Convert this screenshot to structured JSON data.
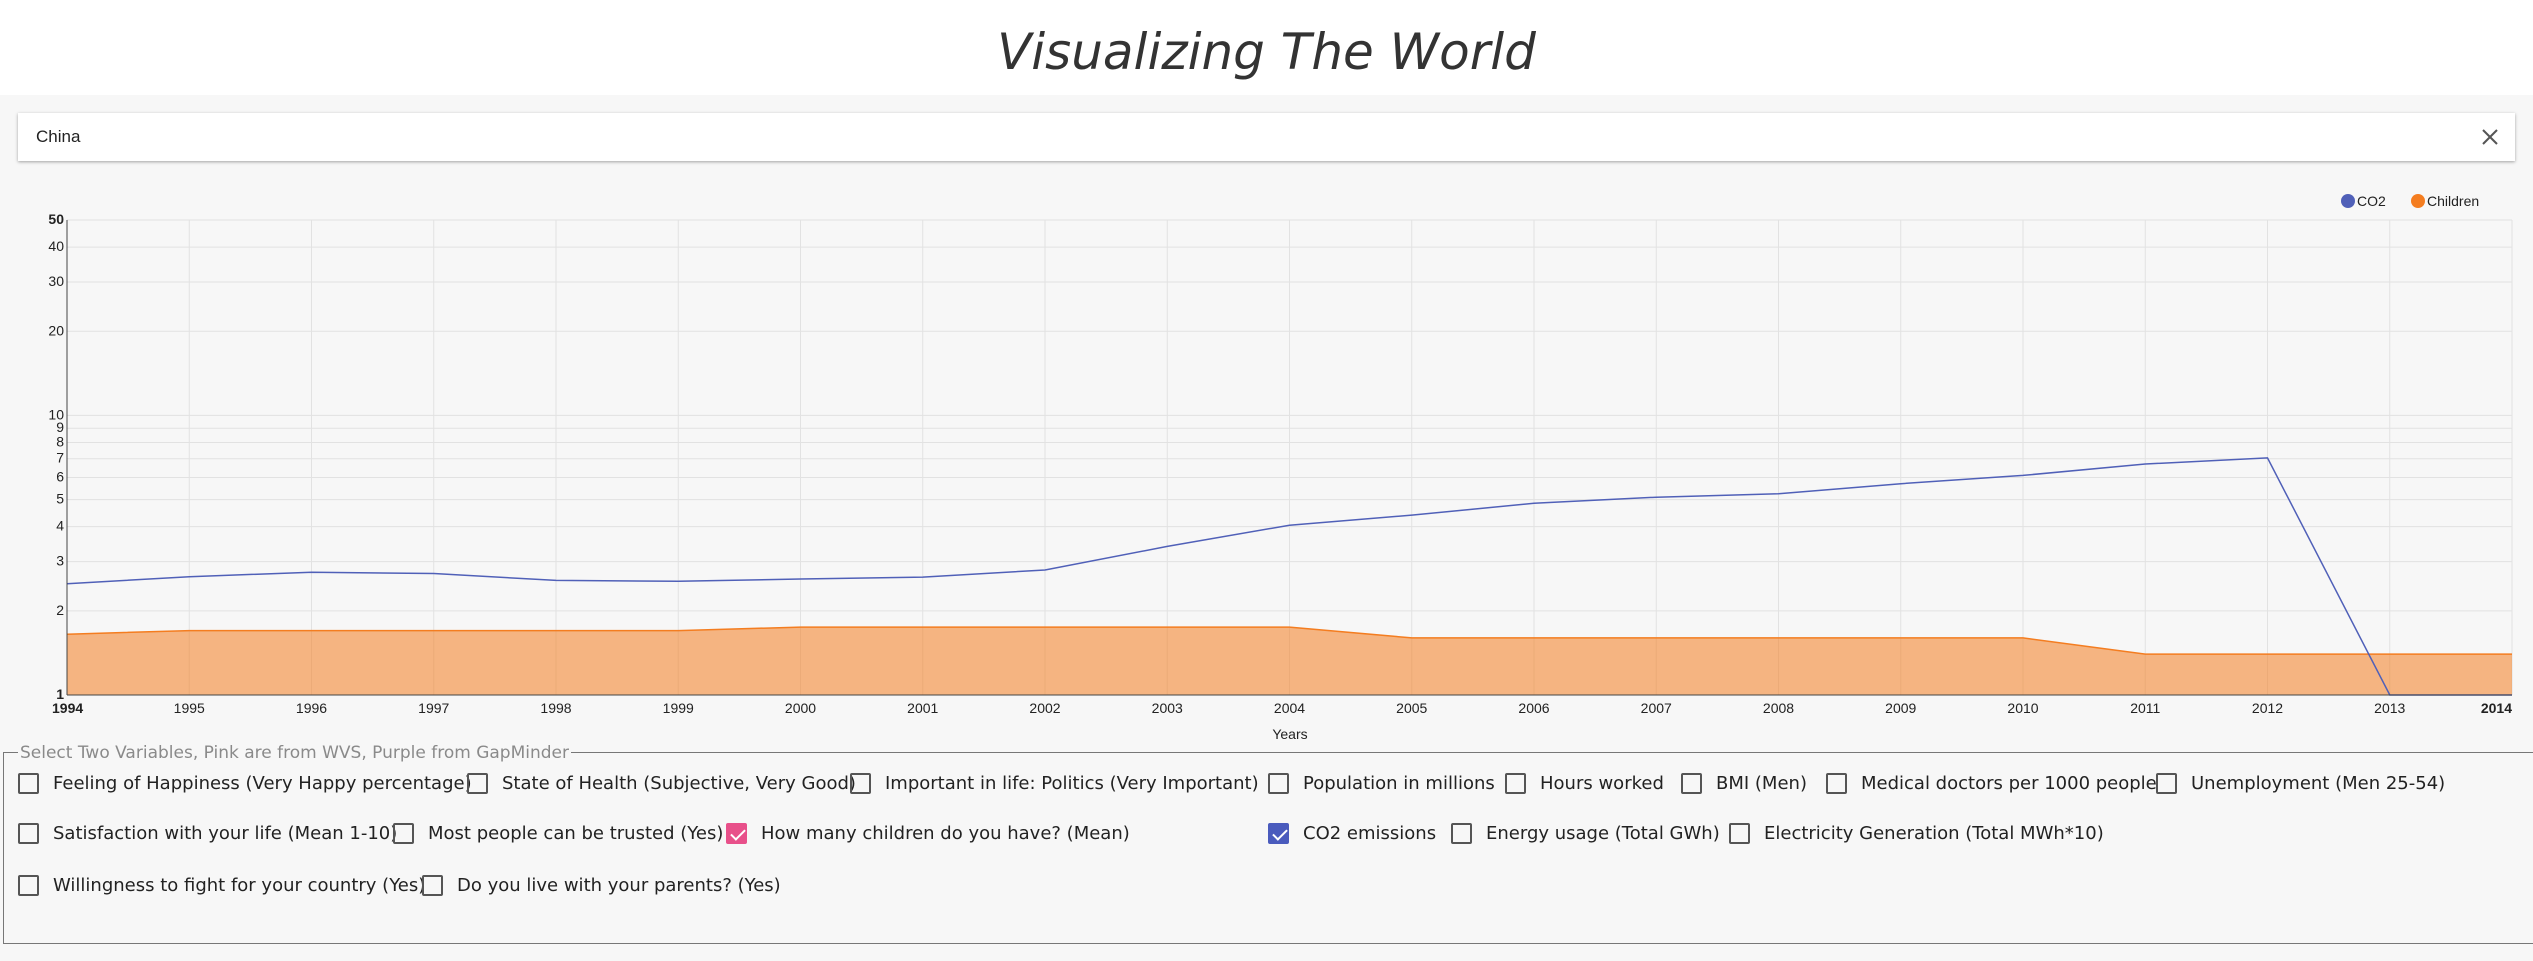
{
  "app": {
    "title": "Visualizing The World"
  },
  "search": {
    "value": "China",
    "clear_icon": "close-icon"
  },
  "chart_data": {
    "type": "line",
    "xlabel": "Years",
    "ylabel": "",
    "yscale": "log",
    "ylim": [
      1,
      50
    ],
    "xlim": [
      1994,
      2014
    ],
    "x_ticks": [
      1994,
      1995,
      1996,
      1997,
      1998,
      1999,
      2000,
      2001,
      2002,
      2003,
      2004,
      2005,
      2006,
      2007,
      2008,
      2009,
      2010,
      2011,
      2012,
      2013,
      2014
    ],
    "y_ticks": [
      1,
      2,
      3,
      4,
      5,
      6,
      7,
      8,
      9,
      10,
      20,
      30,
      40,
      50
    ],
    "grid": true,
    "legend_position": "top-right",
    "series": [
      {
        "name": "CO2",
        "style": "line",
        "color": "#5060b8",
        "x": [
          1994,
          1995,
          1996,
          1997,
          1998,
          1999,
          2000,
          2001,
          2002,
          2003,
          2004,
          2005,
          2006,
          2007,
          2008,
          2009,
          2010,
          2011,
          2012,
          2013,
          2014
        ],
        "values": [
          2.5,
          2.65,
          2.75,
          2.72,
          2.57,
          2.55,
          2.6,
          2.64,
          2.8,
          3.4,
          4.05,
          4.4,
          4.85,
          5.1,
          5.25,
          5.7,
          6.1,
          6.7,
          7.05,
          1.0,
          1.0
        ]
      },
      {
        "name": "Children",
        "style": "area",
        "color": "#f47d20",
        "x": [
          1994,
          1995,
          1996,
          1997,
          1998,
          1999,
          2000,
          2001,
          2002,
          2003,
          2004,
          2005,
          2006,
          2007,
          2008,
          2009,
          2010,
          2011,
          2012,
          2013,
          2014
        ],
        "values": [
          1.65,
          1.7,
          1.7,
          1.7,
          1.7,
          1.7,
          1.75,
          1.75,
          1.75,
          1.75,
          1.75,
          1.6,
          1.6,
          1.6,
          1.6,
          1.6,
          1.6,
          1.4,
          1.4,
          1.4,
          1.4
        ]
      }
    ]
  },
  "variables": {
    "legend": "Select Two Variables, Pink are from WVS, Purple from GapMinder",
    "wvs": [
      {
        "label": "Feeling of Happiness (Very Happy percentage)",
        "checked": false
      },
      {
        "label": "State of Health (Subjective, Very Good)",
        "checked": false
      },
      {
        "label": "Important in life: Politics (Very Important)",
        "checked": false
      },
      {
        "label": "Satisfaction with your life (Mean 1-10)",
        "checked": false
      },
      {
        "label": "Most people can be trusted (Yes)",
        "checked": false
      },
      {
        "label": "How many children do you have? (Mean)",
        "checked": true
      },
      {
        "label": "Willingness to fight for your country (Yes)",
        "checked": false
      },
      {
        "label": "Do you live with your parents? (Yes)",
        "checked": false
      }
    ],
    "gapminder": [
      {
        "label": "Population in millions",
        "checked": false
      },
      {
        "label": "Hours worked",
        "checked": false
      },
      {
        "label": "BMI (Men)",
        "checked": false
      },
      {
        "label": "Medical doctors per 1000 people",
        "checked": false
      },
      {
        "label": "Unemployment (Men 25-54)",
        "checked": false
      },
      {
        "label": "CO2 emissions",
        "checked": true
      },
      {
        "label": "Energy usage (Total GWh)",
        "checked": false
      },
      {
        "label": "Electricity Generation (Total MWh*10)",
        "checked": false
      }
    ],
    "colors": {
      "wvs": "#e8508a",
      "gapminder": "#4a5bbd"
    }
  }
}
